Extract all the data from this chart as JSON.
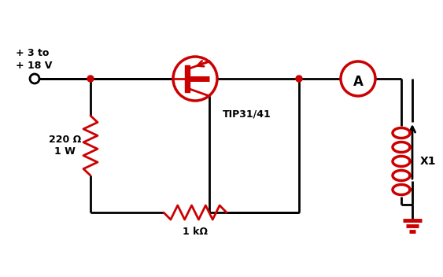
{
  "bg_color": "#ffffff",
  "wire_color": "#000000",
  "component_color": "#cc0000",
  "text_color": "#000000",
  "voltage_label": "+ 3 to\n+ 18 V",
  "resistor1_label": "220 Ω\n1 W",
  "resistor2_label": "1 kΩ",
  "transistor_label": "TIP31/41",
  "ammeter_label": "A",
  "inductor_label": "X1",
  "fig_width": 5.63,
  "fig_height": 3.52,
  "dpi": 100
}
